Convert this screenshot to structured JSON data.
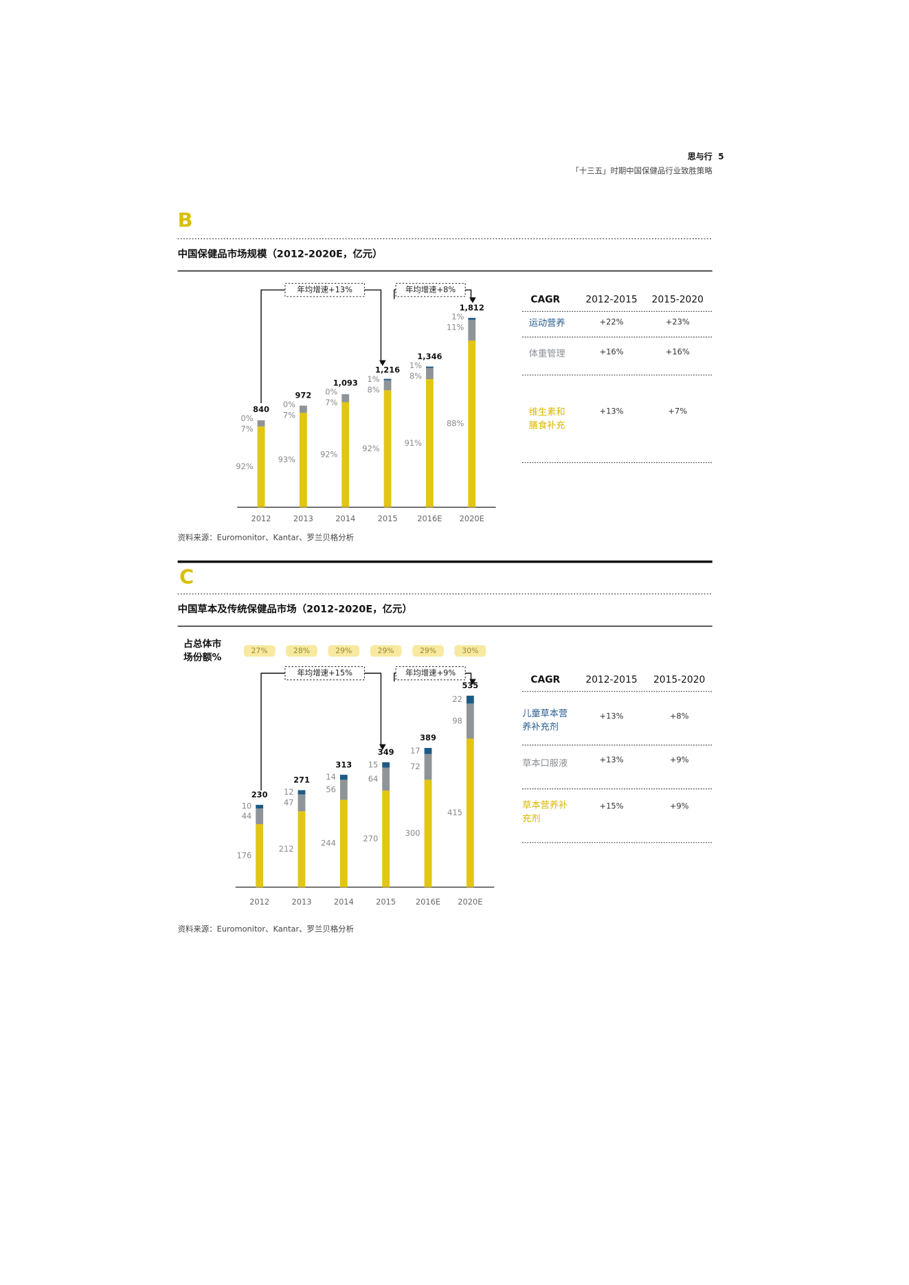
{
  "header": {
    "brand": "思与行",
    "page": 5,
    "subtitle": "「十三五」时期中国保健品行业致胜策略"
  },
  "sections": [
    {
      "letter": "B",
      "title": "中国保健品市场规模（2012-2020E，亿元）",
      "source": "资料来源：Euromonitor、Kantar、罗兰贝格分析"
    },
    {
      "letter": "C",
      "title": "中国草本及传统保健品市场（2012-2020E，亿元）",
      "source": "资料来源：Euromonitor、Kantar、罗兰贝格分析"
    }
  ],
  "chart_data": [
    {
      "type": "bar",
      "stacked": "percent",
      "categories": [
        "2012",
        "2013",
        "2014",
        "2015",
        "2016E",
        "2020E"
      ],
      "ylim": [
        0,
        2000
      ],
      "totals": [
        840,
        972,
        1093,
        1216,
        1346,
        1812
      ],
      "total_labels": [
        "840",
        "972",
        "1,093",
        "1,216",
        "1,346",
        "1,812"
      ],
      "series": [
        {
          "name": "维生素和膳食补充",
          "color": "#e2c613",
          "label_color": "#d9b800",
          "values": [
            92,
            93,
            92,
            92,
            91,
            88
          ],
          "value_labels": [
            "92%",
            "93%",
            "92%",
            "92%",
            "91%",
            "88%"
          ],
          "cagr": [
            "+13%",
            "+7%"
          ]
        },
        {
          "name": "体重管理",
          "color": "#8f9499",
          "label_color": "#8a8f94",
          "values": [
            7,
            7,
            7,
            8,
            8,
            11
          ],
          "value_labels": [
            "7%",
            "7%",
            "7%",
            "8%",
            "8%",
            "11%"
          ],
          "cagr": [
            "+16%",
            "+16%"
          ]
        },
        {
          "name": "运动营养",
          "color": "#1f5a85",
          "label_color": "#2a5d8f",
          "values": [
            0,
            0,
            0,
            1,
            1,
            1
          ],
          "value_labels": [
            "0%",
            "0%",
            "0%",
            "1%",
            "1%",
            "1%"
          ],
          "cagr": [
            "+22%",
            "+23%"
          ]
        }
      ],
      "annotations": [
        "年均增速+13%",
        "年均增速+8%"
      ],
      "cagr_header": [
        "CAGR",
        "2012-2015",
        "2015-2020"
      ]
    },
    {
      "type": "bar",
      "stacked": "value",
      "categories": [
        "2012",
        "2013",
        "2014",
        "2015",
        "2016E",
        "2020E"
      ],
      "ylim": [
        0,
        600
      ],
      "totals": [
        230,
        271,
        313,
        349,
        389,
        535
      ],
      "share_title": "占总体市场份额%",
      "share": [
        27,
        28,
        29,
        29,
        29,
        30
      ],
      "share_labels": [
        "27%",
        "28%",
        "29%",
        "29%",
        "29%",
        "30%"
      ],
      "series": [
        {
          "name": "草本营养补充剂",
          "color": "#e2c613",
          "label_color": "#d9b800",
          "values": [
            176,
            212,
            244,
            270,
            300,
            415
          ],
          "cagr": [
            "+15%",
            "+9%"
          ]
        },
        {
          "name": "草本口服液",
          "color": "#8f9499",
          "label_color": "#8a8f94",
          "values": [
            44,
            47,
            56,
            64,
            72,
            98
          ],
          "cagr": [
            "+13%",
            "+9%"
          ]
        },
        {
          "name": "儿童草本营养补充剂",
          "color": "#1f5a85",
          "label_color": "#2a5d8f",
          "values": [
            10,
            12,
            14,
            15,
            17,
            22
          ],
          "cagr": [
            "+13%",
            "+8%"
          ]
        }
      ],
      "annotations": [
        "年均增速+15%",
        "年均增速+9%"
      ],
      "cagr_header": [
        "CAGR",
        "2012-2015",
        "2015-2020"
      ]
    }
  ]
}
